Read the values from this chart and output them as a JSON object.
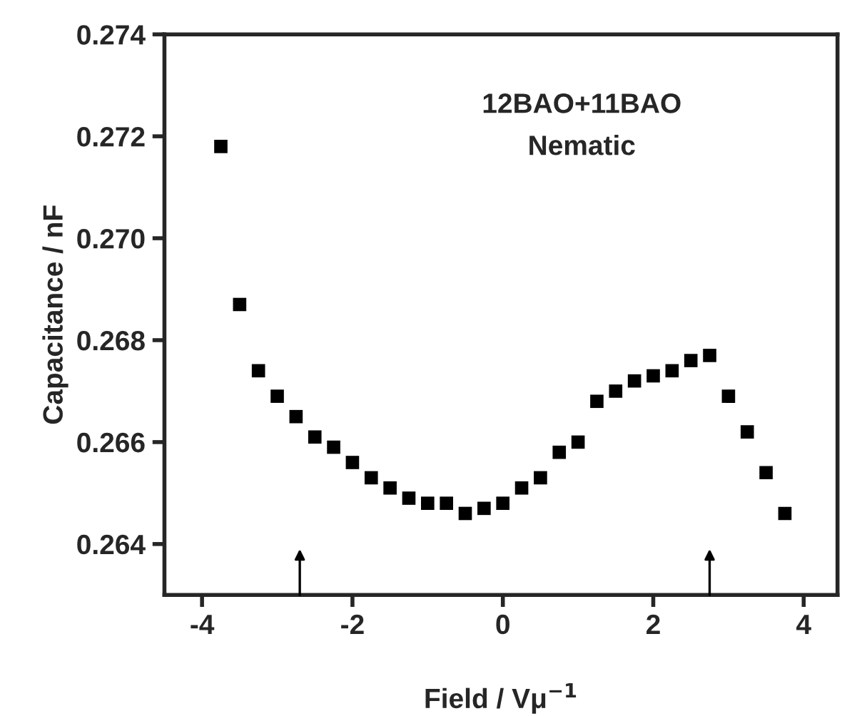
{
  "chart_data": {
    "type": "scatter",
    "xlabel": "Field / Vμ$^{−1}$",
    "ylabel": "Capacitance / nF",
    "annotations": [
      "12BAO+11BAO",
      "Nematic"
    ],
    "x": [
      -3.75,
      -3.5,
      -3.25,
      -3.0,
      -2.75,
      -2.5,
      -2.25,
      -2.0,
      -1.75,
      -1.5,
      -1.25,
      -1.0,
      -0.75,
      -0.5,
      -0.25,
      0,
      0.25,
      0.5,
      0.75,
      1.0,
      1.25,
      1.5,
      1.75,
      2.0,
      2.25,
      2.5,
      2.75,
      3.0,
      3.25,
      3.5,
      3.75
    ],
    "series": [
      {
        "color": "#000000",
        "values": [
          0.2718,
          0.2687,
          0.2674,
          0.2669,
          0.2665,
          0.2661,
          0.2659,
          0.2656,
          0.2653,
          0.2651,
          0.2649,
          0.2648,
          0.2648,
          0.2646,
          0.2647,
          0.2648,
          0.2651,
          0.2653,
          0.2658,
          0.266,
          0.2668,
          0.267,
          0.2672,
          0.2673,
          0.2674,
          0.2676,
          0.2677,
          0.2669,
          0.2662,
          0.2654,
          0.2646
        ]
      }
    ],
    "marker": "square",
    "xlim": [
      -4.5,
      4.45
    ],
    "xticks": [
      -4,
      -2,
      0,
      2,
      4
    ],
    "ylim": [
      0.263,
      0.274
    ],
    "yticks": [
      0.264,
      0.266,
      0.268,
      {
        "value": 0.27,
        "label": "0.270"
      },
      0.272,
      0.274
    ]
  }
}
